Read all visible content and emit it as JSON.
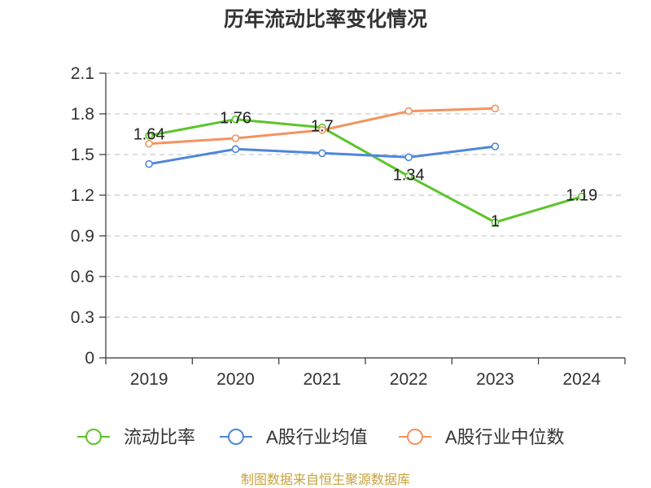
{
  "chart_data": {
    "type": "line",
    "title": "历年流动比率变化情况",
    "categories": [
      "2019",
      "2020",
      "2021",
      "2022",
      "2023",
      "2024"
    ],
    "ylim": [
      0,
      2.1
    ],
    "yticks": [
      0,
      0.3,
      0.6,
      0.9,
      1.2,
      1.5,
      1.8,
      2.1
    ],
    "ytick_labels": [
      "0",
      "0.3",
      "0.6",
      "0.9",
      "1.2",
      "1.5",
      "1.8",
      "2.1"
    ],
    "grid": true,
    "legend": "bottom",
    "series": [
      {
        "name": "流动比率",
        "values": [
          1.64,
          1.76,
          1.7,
          1.34,
          1,
          1.19
        ],
        "labels": [
          "1.64",
          "1.76",
          "1.7",
          "1.34",
          "1",
          "1.19"
        ],
        "color": "#5cc42b"
      },
      {
        "name": "A股行业均值",
        "values": [
          1.43,
          1.54,
          1.51,
          1.48,
          1.56,
          null
        ],
        "color": "#4f86dd"
      },
      {
        "name": "A股行业中位数",
        "values": [
          1.58,
          1.62,
          1.68,
          1.82,
          1.84,
          null
        ],
        "color": "#f4935f"
      }
    ]
  },
  "source": "制图数据来自恒生聚源数据库"
}
